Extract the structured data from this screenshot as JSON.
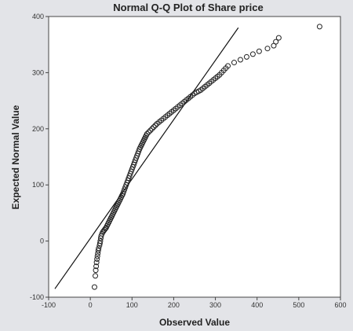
{
  "chart_data": {
    "type": "scatter",
    "title": "Normal Q-Q Plot of Share price",
    "xlabel": "Observed Value",
    "ylabel": "Expected Normal Value",
    "xlim": [
      -100,
      600
    ],
    "ylim": [
      -100,
      400
    ],
    "x_ticks": [
      "-100",
      "0",
      "100",
      "200",
      "300",
      "400",
      "500",
      "600"
    ],
    "y_ticks": [
      "-100",
      "0",
      "100",
      "200",
      "300",
      "400"
    ],
    "grid": false,
    "reference_line": {
      "x": [
        -85,
        355
      ],
      "y": [
        -85,
        380
      ]
    },
    "marker": "open-circle",
    "colors": {
      "points": "#222222",
      "line": "#111111",
      "background": "#ffffff"
    },
    "points": [
      [
        10,
        -82
      ],
      [
        12,
        -62
      ],
      [
        13,
        -52
      ],
      [
        14,
        -45
      ],
      [
        15,
        -38
      ],
      [
        16,
        -32
      ],
      [
        17,
        -27
      ],
      [
        18,
        -22
      ],
      [
        19,
        -17
      ],
      [
        20,
        -13
      ],
      [
        22,
        -8
      ],
      [
        23,
        -4
      ],
      [
        24,
        0
      ],
      [
        25,
        5
      ],
      [
        26,
        9
      ],
      [
        28,
        13
      ],
      [
        30,
        16
      ],
      [
        32,
        18
      ],
      [
        34,
        20
      ],
      [
        36,
        22
      ],
      [
        38,
        24
      ],
      [
        40,
        27
      ],
      [
        42,
        30
      ],
      [
        44,
        33
      ],
      [
        46,
        36
      ],
      [
        48,
        39
      ],
      [
        50,
        42
      ],
      [
        52,
        45
      ],
      [
        54,
        48
      ],
      [
        56,
        51
      ],
      [
        58,
        54
      ],
      [
        60,
        57
      ],
      [
        62,
        60
      ],
      [
        64,
        63
      ],
      [
        66,
        66
      ],
      [
        68,
        69
      ],
      [
        70,
        72
      ],
      [
        72,
        75
      ],
      [
        74,
        78
      ],
      [
        76,
        81
      ],
      [
        78,
        84
      ],
      [
        80,
        88
      ],
      [
        82,
        92
      ],
      [
        84,
        96
      ],
      [
        86,
        100
      ],
      [
        88,
        104
      ],
      [
        90,
        108
      ],
      [
        92,
        112
      ],
      [
        94,
        116
      ],
      [
        96,
        120
      ],
      [
        98,
        124
      ],
      [
        100,
        128
      ],
      [
        102,
        132
      ],
      [
        104,
        136
      ],
      [
        106,
        140
      ],
      [
        108,
        144
      ],
      [
        110,
        148
      ],
      [
        112,
        152
      ],
      [
        114,
        156
      ],
      [
        116,
        160
      ],
      [
        118,
        164
      ],
      [
        120,
        167
      ],
      [
        122,
        170
      ],
      [
        124,
        173
      ],
      [
        126,
        176
      ],
      [
        128,
        179
      ],
      [
        130,
        182
      ],
      [
        132,
        185
      ],
      [
        134,
        188
      ],
      [
        136,
        191
      ],
      [
        140,
        194
      ],
      [
        144,
        197
      ],
      [
        148,
        200
      ],
      [
        152,
        203
      ],
      [
        156,
        206
      ],
      [
        160,
        209
      ],
      [
        165,
        212
      ],
      [
        170,
        215
      ],
      [
        175,
        218
      ],
      [
        180,
        221
      ],
      [
        185,
        224
      ],
      [
        190,
        227
      ],
      [
        195,
        230
      ],
      [
        200,
        233
      ],
      [
        205,
        236
      ],
      [
        210,
        239
      ],
      [
        215,
        242
      ],
      [
        220,
        245
      ],
      [
        225,
        248
      ],
      [
        230,
        251
      ],
      [
        235,
        254
      ],
      [
        240,
        257
      ],
      [
        245,
        260
      ],
      [
        250,
        263
      ],
      [
        255,
        265
      ],
      [
        260,
        267
      ],
      [
        265,
        269
      ],
      [
        270,
        272
      ],
      [
        275,
        275
      ],
      [
        280,
        278
      ],
      [
        285,
        281
      ],
      [
        290,
        284
      ],
      [
        295,
        287
      ],
      [
        300,
        290
      ],
      [
        305,
        293
      ],
      [
        310,
        296
      ],
      [
        315,
        300
      ],
      [
        320,
        304
      ],
      [
        325,
        308
      ],
      [
        330,
        312
      ],
      [
        345,
        318
      ],
      [
        360,
        323
      ],
      [
        375,
        328
      ],
      [
        390,
        333
      ],
      [
        405,
        338
      ],
      [
        425,
        343
      ],
      [
        440,
        348
      ],
      [
        445,
        355
      ],
      [
        452,
        362
      ],
      [
        550,
        382
      ]
    ]
  }
}
